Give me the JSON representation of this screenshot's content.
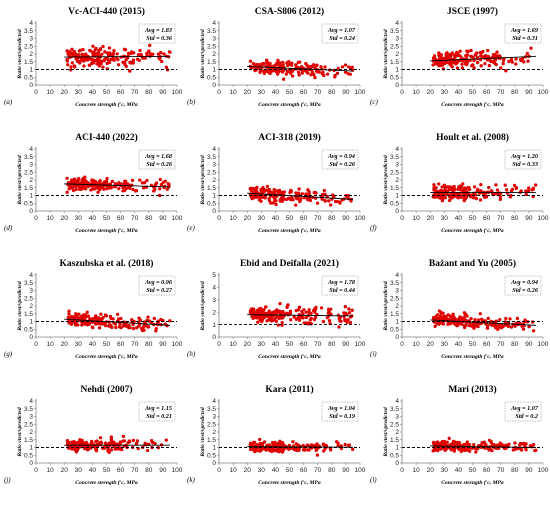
{
  "chart_data": [
    {
      "type": "scatter",
      "panel_label": "(a)",
      "title": "Vc-ACI-440 (2015)",
      "avg": "",
      "std": "",
      "avg_label": "Avg = 1.83",
      "std_label": "Std = 0.36",
      "ylabel": "Ratio vtest/vpredicted",
      "xlabel": "Concrete strength f'c, MPa",
      "xlim": [
        0,
        100
      ],
      "ylim": [
        0,
        4
      ],
      "yticks": [
        0,
        0.5,
        1,
        1.5,
        2,
        2.5,
        3,
        3.5,
        4
      ],
      "xticks": [
        0,
        10,
        20,
        30,
        40,
        50,
        60,
        70,
        80,
        90,
        100
      ],
      "mean": 1.83,
      "spread": 0.36,
      "trend": [
        1.8,
        1.85
      ],
      "reference_line": 1.0
    },
    {
      "type": "scatter",
      "panel_label": "(b)",
      "title": "CSA-S806 (2012)",
      "avg_label": "Avg = 1.07",
      "std_label": "Std = 0.24",
      "ylabel": "Ratio vtest/vpredicted",
      "xlabel": "Concrete strength f'c, MPa",
      "xlim": [
        0,
        100
      ],
      "ylim": [
        0,
        4
      ],
      "yticks": [
        0,
        0.5,
        1,
        1.5,
        2,
        2.5,
        3,
        3.5,
        4
      ],
      "xticks": [
        0,
        10,
        20,
        30,
        40,
        50,
        60,
        70,
        80,
        90,
        100
      ],
      "mean": 1.07,
      "spread": 0.24,
      "trend": [
        1.2,
        0.9
      ],
      "reference_line": 1.0
    },
    {
      "type": "scatter",
      "panel_label": "(c)",
      "title": "JSCE (1997)",
      "avg_label": "Avg = 1.69",
      "std_label": "Std = 0.31",
      "ylabel": "Ratio vtest/vpredicted",
      "xlabel": "Concrete strength f'c, MPa",
      "xlim": [
        0,
        100
      ],
      "ylim": [
        0,
        4
      ],
      "yticks": [
        0,
        0.5,
        1,
        1.5,
        2,
        2.5,
        3,
        3.5,
        4
      ],
      "xticks": [
        0,
        10,
        20,
        30,
        40,
        50,
        60,
        70,
        80,
        90,
        100
      ],
      "mean": 1.69,
      "spread": 0.31,
      "trend": [
        1.55,
        1.85
      ],
      "reference_line": 1.0
    },
    {
      "type": "scatter",
      "panel_label": "(d)",
      "title": "ACI-440 (2022)",
      "avg_label": "Avg = 1.68",
      "std_label": "Std = 0.26",
      "ylabel": "Ratio vtest/vpredicted",
      "xlabel": "Concrete strength f'c, MPa",
      "xlim": [
        0,
        100
      ],
      "ylim": [
        0,
        4
      ],
      "yticks": [
        0,
        0.5,
        1,
        1.5,
        2,
        2.5,
        3,
        3.5,
        4
      ],
      "xticks": [
        0,
        10,
        20,
        30,
        40,
        50,
        60,
        70,
        80,
        90,
        100
      ],
      "mean": 1.68,
      "spread": 0.26,
      "trend": [
        1.75,
        1.55
      ],
      "reference_line": 1.0
    },
    {
      "type": "scatter",
      "panel_label": "(e)",
      "title": "ACI-318 (2019)",
      "avg_label": "Avg = 0.94",
      "std_label": "Std = 0.26",
      "ylabel": "Ratio vtest/vpredicted",
      "xlabel": "Concrete strength f'c, MPa",
      "xlim": [
        0,
        100
      ],
      "ylim": [
        0,
        4
      ],
      "yticks": [
        0,
        0.5,
        1,
        1.5,
        2,
        2.5,
        3,
        3.5,
        4
      ],
      "xticks": [
        0,
        10,
        20,
        30,
        40,
        50,
        60,
        70,
        80,
        90,
        100
      ],
      "mean": 0.94,
      "spread": 0.26,
      "trend": [
        1.15,
        0.75
      ],
      "reference_line": 1.0
    },
    {
      "type": "scatter",
      "panel_label": "(f)",
      "title": "Hoult et al. (2008)",
      "avg_label": "Avg = 1.20",
      "std_label": "Std = 0.33",
      "ylabel": "Ratio vtest/vpredicted",
      "xlabel": "Concrete strength f'c, MPa",
      "xlim": [
        0,
        100
      ],
      "ylim": [
        0,
        4
      ],
      "yticks": [
        0,
        0.5,
        1,
        1.5,
        2,
        2.5,
        3,
        3.5,
        4
      ],
      "xticks": [
        0,
        10,
        20,
        30,
        40,
        50,
        60,
        70,
        80,
        90,
        100
      ],
      "mean": 1.2,
      "spread": 0.33,
      "trend": [
        1.2,
        1.2
      ],
      "reference_line": 1.0
    },
    {
      "type": "scatter",
      "panel_label": "(g)",
      "title": "Kaszubska  et al. (2018)",
      "avg_label": "Avg = 0.96",
      "std_label": "Std = 0.27",
      "ylabel": "Ratio vtest/vpredicted",
      "xlabel": "Concrete strength f'c, MPa",
      "xlim": [
        0,
        100
      ],
      "ylim": [
        0,
        4
      ],
      "yticks": [
        0,
        0.5,
        1,
        1.5,
        2,
        2.5,
        3,
        3.5,
        4
      ],
      "xticks": [
        0,
        10,
        20,
        30,
        40,
        50,
        60,
        70,
        80,
        90,
        100
      ],
      "mean": 0.96,
      "spread": 0.27,
      "trend": [
        1.15,
        0.75
      ],
      "reference_line": 1.0
    },
    {
      "type": "scatter",
      "panel_label": "(h)",
      "title": "Ebid and Deifalla (2021)",
      "avg_label": "Avg = 1.78",
      "std_label": "Std = 0.44",
      "ylabel": "Ratio vtest/vpredicted",
      "xlabel": "Concrete strength f'c, MPa",
      "xlim": [
        0,
        100
      ],
      "ylim": [
        0,
        5
      ],
      "yticks": [
        0,
        1,
        2,
        3,
        4,
        5
      ],
      "xticks": [
        0,
        10,
        20,
        30,
        40,
        50,
        60,
        70,
        80,
        90,
        100
      ],
      "mean": 1.78,
      "spread": 0.44,
      "trend": [
        1.8,
        1.7
      ],
      "reference_line": 1.0
    },
    {
      "type": "scatter",
      "panel_label": "(i)",
      "title": "Bažant and Yu (2005)",
      "avg_label": "Avg = 0.94",
      "std_label": "Std = 0.26",
      "ylabel": "Ratio vtest/vpredicted",
      "xlabel": "Concrete strength f'c, MPa",
      "xlim": [
        0,
        100
      ],
      "ylim": [
        0,
        4
      ],
      "yticks": [
        0,
        0.5,
        1,
        1.5,
        2,
        2.5,
        3,
        3.5,
        4
      ],
      "xticks": [
        0,
        10,
        20,
        30,
        40,
        50,
        60,
        70,
        80,
        90,
        100
      ],
      "mean": 0.94,
      "spread": 0.26,
      "trend": [
        1.1,
        0.75
      ],
      "reference_line": 1.0
    },
    {
      "type": "scatter",
      "panel_label": "(j)",
      "title": "Nehdi (2007)",
      "avg_label": "Avg = 1.15",
      "std_label": "Std = 0.21",
      "ylabel": "Ratio vtest/vpredicted",
      "xlabel": "Concrete strength f'c, MPa",
      "xlim": [
        0,
        100
      ],
      "ylim": [
        0,
        4
      ],
      "yticks": [
        0,
        0.5,
        1,
        1.5,
        2,
        2.5,
        3,
        3.5,
        4
      ],
      "xticks": [
        0,
        10,
        20,
        30,
        40,
        50,
        60,
        70,
        80,
        90,
        100
      ],
      "mean": 1.15,
      "spread": 0.21,
      "trend": [
        1.15,
        1.15
      ],
      "reference_line": 1.0
    },
    {
      "type": "scatter",
      "panel_label": "(k)",
      "title": "Kara (2011)",
      "avg_label": "Avg = 1.04",
      "std_label": "Std = 0.19",
      "ylabel": "Ratio vtest/vpredicted",
      "xlabel": "Concrete strength f'c, MPa",
      "xlim": [
        0,
        100
      ],
      "ylim": [
        0,
        4
      ],
      "yticks": [
        0,
        0.5,
        1,
        1.5,
        2,
        2.5,
        3,
        3.5,
        4
      ],
      "xticks": [
        0,
        10,
        20,
        30,
        40,
        50,
        60,
        70,
        80,
        90,
        100
      ],
      "mean": 1.04,
      "spread": 0.19,
      "trend": [
        1.05,
        1.02
      ],
      "reference_line": 1.0
    },
    {
      "type": "scatter",
      "panel_label": "(l)",
      "title": "Mari (2013)",
      "avg_label": "Avg = 1.07",
      "std_label": "Std = 0.2",
      "ylabel": "Ratio vtest/vpredicted",
      "xlabel": "Concrete strength f'c, MPa",
      "xlim": [
        0,
        100
      ],
      "ylim": [
        0,
        4
      ],
      "yticks": [
        0,
        0.5,
        1,
        1.5,
        2,
        2.5,
        3,
        3.5,
        4
      ],
      "xticks": [
        0,
        10,
        20,
        30,
        40,
        50,
        60,
        70,
        80,
        90,
        100
      ],
      "mean": 1.07,
      "spread": 0.2,
      "trend": [
        1.1,
        1.0
      ],
      "reference_line": 1.0
    }
  ],
  "colors": {
    "points": "#e00000",
    "trend": "#000000",
    "reference": "#000000",
    "axis": "#808080"
  }
}
